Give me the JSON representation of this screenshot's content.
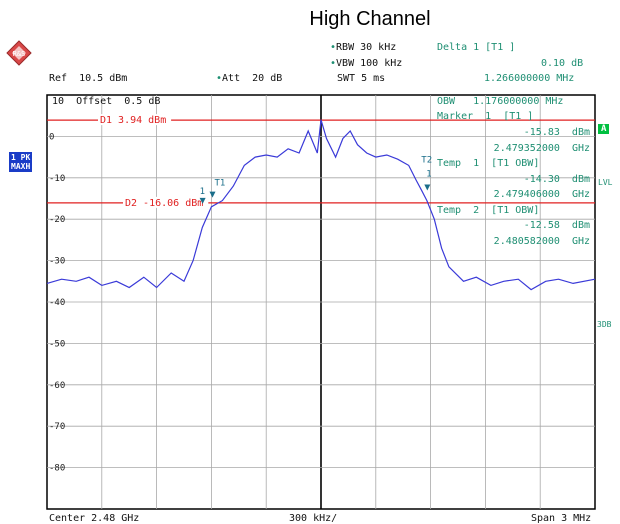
{
  "title": "High Channel",
  "header": {
    "rbw": "RBW 30 kHz",
    "vbw": "VBW 100 kHz",
    "swt": "SWT 5 ms",
    "delta_label": "Delta 1 [T1 ]",
    "delta_value": "0.10 dB",
    "delta_freq": "1.266000000 MHz",
    "ref": "Ref  10.5 dBm",
    "att": "Att  20 dB"
  },
  "offset_label": "10  Offset  0.5 dB",
  "side": {
    "trace_mode": "1 PK\nMAXH",
    "a_marker": "A",
    "lvl": "LVL",
    "three_db": "3DB"
  },
  "markers_panel": [
    {
      "text": "OBW   1.176000000 MHz",
      "color": "#1f8f73"
    },
    {
      "text": "Marker  1  [T1 ]",
      "color": "#1f8f73"
    },
    {
      "text": "-15.83  dBm",
      "color": "#1f8f73"
    },
    {
      "text": "2.479352000  GHz",
      "color": "#1f8f73"
    },
    {
      "text": "Temp  1  [T1 OBW]",
      "color": "#1f8f73"
    },
    {
      "text": "-14.30  dBm",
      "color": "#1f8f73"
    },
    {
      "text": "2.479406000  GHz",
      "color": "#1f8f73"
    },
    {
      "text": "Temp  2  [T1 OBW]",
      "color": "#1f8f73"
    },
    {
      "text": "-12.58  dBm",
      "color": "#1f8f73"
    },
    {
      "text": "2.480582000  GHz",
      "color": "#1f8f73"
    }
  ],
  "display_lines": [
    {
      "label": "D1 3.94 dBm",
      "value": 3.94,
      "color": "#e02020"
    },
    {
      "label": "D2 -16.06 dBm",
      "value": -16.06,
      "color": "#e02020"
    }
  ],
  "marker_tags": [
    "1",
    "T1",
    "T2",
    "1"
  ],
  "footer": {
    "center": "Center 2.48 GHz",
    "div": "300 kHz/",
    "span": "Span 3 MHz"
  },
  "chart_data": {
    "type": "line",
    "xlabel": "",
    "ylabel": "",
    "xlim": [
      2.4785,
      2.4815
    ],
    "ylim": [
      -90,
      10
    ],
    "y_ticks": [
      0,
      -10,
      -20,
      -30,
      -40,
      -50,
      -60,
      -70,
      -80
    ],
    "y_tick_labels": [
      "0",
      "-10",
      "-20",
      "-30",
      "-40",
      "-50",
      "-60",
      "-70",
      "-80"
    ],
    "grid": true,
    "trace_color": "#3a3ad8",
    "series": [
      {
        "x": [
          2.4785,
          2.47858,
          2.47866,
          2.47873,
          2.4788,
          2.47888,
          2.47895,
          2.47903,
          2.4791,
          2.47918,
          2.47925,
          2.4793,
          2.47935,
          2.4794,
          2.47946,
          2.47952,
          2.47958,
          2.47964,
          2.4797,
          2.47976,
          2.47982,
          2.47988,
          2.47993,
          2.47998,
          2.48,
          2.48003,
          2.48008,
          2.48012,
          2.48016,
          2.4802,
          2.48025,
          2.4803,
          2.48036,
          2.48042,
          2.48048,
          2.48052,
          2.48055,
          2.48058,
          2.48062,
          2.48066,
          2.4807,
          2.48078,
          2.48085,
          2.48093,
          2.481,
          2.48108,
          2.48115,
          2.48123,
          2.4813,
          2.48138,
          2.4815
        ],
        "y": [
          -35.5,
          -34.5,
          -35,
          -34,
          -36,
          -35,
          -36.5,
          -34,
          -36.5,
          -33,
          -35,
          -30,
          -22,
          -17,
          -15.5,
          -12,
          -7,
          -5,
          -4.5,
          -5,
          -3,
          -4,
          1.3,
          -4,
          4,
          -0.5,
          -5,
          -0.5,
          1.3,
          -2,
          -4,
          -5,
          -4.5,
          -5.5,
          -7,
          -10.5,
          -13,
          -15.5,
          -20,
          -27,
          -31.5,
          -35,
          -34,
          -36,
          -35,
          -34.5,
          -37,
          -35,
          -34.5,
          -35.5,
          -34.5
        ]
      }
    ],
    "markers": [
      {
        "name": "1",
        "x": 2.479352,
        "y": -15.83
      },
      {
        "name": "T1",
        "x": 2.479406,
        "y": -14.3
      },
      {
        "name": "T2",
        "x": 2.480582,
        "y": -12.58
      }
    ]
  }
}
